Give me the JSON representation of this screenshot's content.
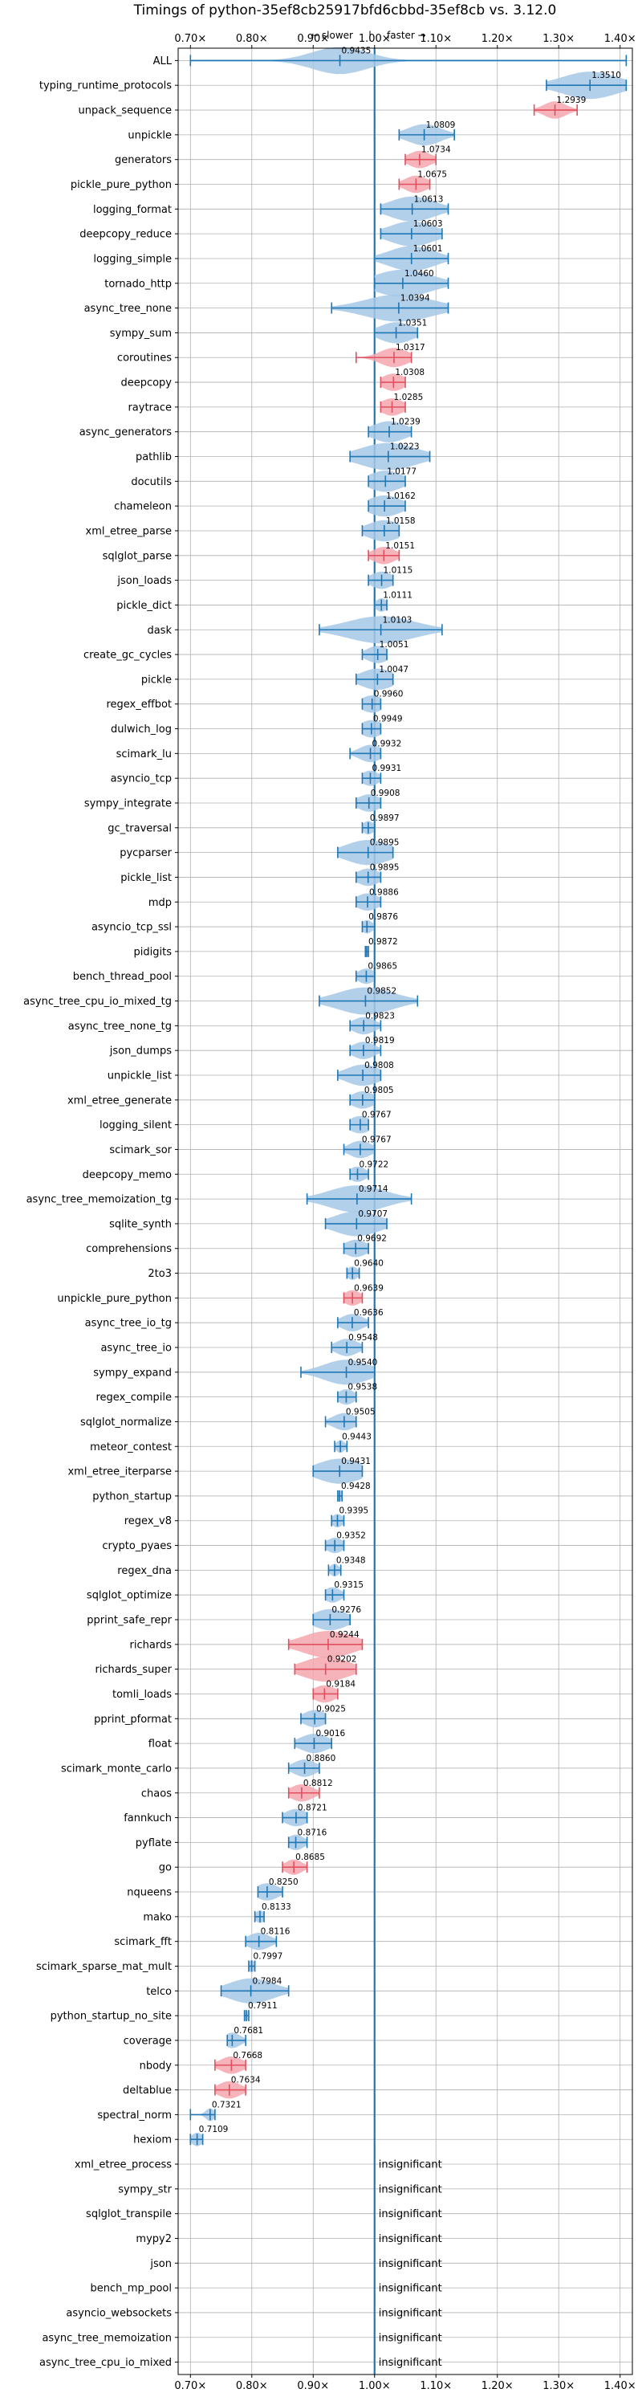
{
  "chart_data": {
    "type": "violin",
    "title": "Timings of python-35ef8cb25917bfd6cbbd-35ef8cb vs. 3.12.0",
    "hint_slower": "← slower",
    "hint_faster": "faster →",
    "hint_separator": "|",
    "xlim": [
      0.68,
      1.42
    ],
    "xticks": [
      0.7,
      0.8,
      0.9,
      1.0,
      1.1,
      1.2,
      1.3,
      1.4
    ],
    "xtick_labels": [
      "0.70×",
      "0.80×",
      "0.90×",
      "1.00×",
      "1.10×",
      "1.20×",
      "1.30×",
      "1.40×"
    ],
    "reference_line": 1.0,
    "grid": true,
    "colors": {
      "normal": "#1f77b4",
      "fill": "#a6c8e8",
      "highlight_fill": "#f4a6ae",
      "highlight_line": "#e05060"
    },
    "insignificant_text": "insignificant",
    "series": [
      {
        "name": "ALL",
        "value": 0.9435,
        "label": "0.9435",
        "min": 0.7,
        "max": 1.41,
        "spread": 0.05,
        "highlight": false
      },
      {
        "name": "typing_runtime_protocols",
        "value": 1.351,
        "label": "1.3510",
        "min": 1.28,
        "max": 1.41,
        "spread": 0.05,
        "highlight": false
      },
      {
        "name": "unpack_sequence",
        "value": 1.2939,
        "label": "1.2939",
        "min": 1.26,
        "max": 1.33,
        "spread": 0.02,
        "highlight": true
      },
      {
        "name": "unpickle",
        "value": 1.0809,
        "label": "1.0809",
        "min": 1.04,
        "max": 1.13,
        "spread": 0.03,
        "highlight": false
      },
      {
        "name": "generators",
        "value": 1.0734,
        "label": "1.0734",
        "min": 1.05,
        "max": 1.1,
        "spread": 0.02,
        "highlight": true
      },
      {
        "name": "pickle_pure_python",
        "value": 1.0675,
        "label": "1.0675",
        "min": 1.04,
        "max": 1.09,
        "spread": 0.02,
        "highlight": true
      },
      {
        "name": "logging_format",
        "value": 1.0613,
        "label": "1.0613",
        "min": 1.01,
        "max": 1.12,
        "spread": 0.04,
        "highlight": false
      },
      {
        "name": "deepcopy_reduce",
        "value": 1.0603,
        "label": "1.0603",
        "min": 1.01,
        "max": 1.11,
        "spread": 0.04,
        "highlight": false
      },
      {
        "name": "logging_simple",
        "value": 1.0601,
        "label": "1.0601",
        "min": 1.0,
        "max": 1.12,
        "spread": 0.04,
        "highlight": false
      },
      {
        "name": "tornado_http",
        "value": 1.046,
        "label": "1.0460",
        "min": 1.0,
        "max": 1.12,
        "spread": 0.05,
        "highlight": false
      },
      {
        "name": "async_tree_none",
        "value": 1.0394,
        "label": "1.0394",
        "min": 0.93,
        "max": 1.12,
        "spread": 0.06,
        "highlight": false
      },
      {
        "name": "sympy_sum",
        "value": 1.0351,
        "label": "1.0351",
        "min": 1.0,
        "max": 1.07,
        "spread": 0.03,
        "highlight": false
      },
      {
        "name": "coroutines",
        "value": 1.0317,
        "label": "1.0317",
        "min": 0.97,
        "max": 1.06,
        "spread": 0.025,
        "highlight": true
      },
      {
        "name": "deepcopy",
        "value": 1.0308,
        "label": "1.0308",
        "min": 1.01,
        "max": 1.05,
        "spread": 0.02,
        "highlight": true
      },
      {
        "name": "raytrace",
        "value": 1.0285,
        "label": "1.0285",
        "min": 1.01,
        "max": 1.05,
        "spread": 0.02,
        "highlight": true
      },
      {
        "name": "async_generators",
        "value": 1.0239,
        "label": "1.0239",
        "min": 0.99,
        "max": 1.06,
        "spread": 0.03,
        "highlight": false
      },
      {
        "name": "pathlib",
        "value": 1.0223,
        "label": "1.0223",
        "min": 0.96,
        "max": 1.09,
        "spread": 0.05,
        "highlight": false
      },
      {
        "name": "docutils",
        "value": 1.0177,
        "label": "1.0177",
        "min": 0.99,
        "max": 1.05,
        "spread": 0.03,
        "highlight": false
      },
      {
        "name": "chameleon",
        "value": 1.0162,
        "label": "1.0162",
        "min": 0.99,
        "max": 1.05,
        "spread": 0.03,
        "highlight": false
      },
      {
        "name": "xml_etree_parse",
        "value": 1.0158,
        "label": "1.0158",
        "min": 0.98,
        "max": 1.04,
        "spread": 0.03,
        "highlight": false
      },
      {
        "name": "sqlglot_parse",
        "value": 1.0151,
        "label": "1.0151",
        "min": 0.99,
        "max": 1.04,
        "spread": 0.02,
        "highlight": true
      },
      {
        "name": "json_loads",
        "value": 1.0115,
        "label": "1.0115",
        "min": 0.99,
        "max": 1.03,
        "spread": 0.02,
        "highlight": false
      },
      {
        "name": "pickle_dict",
        "value": 1.0111,
        "label": "1.0111",
        "min": 1.0,
        "max": 1.02,
        "spread": 0.01,
        "highlight": false
      },
      {
        "name": "dask",
        "value": 1.0103,
        "label": "1.0103",
        "min": 0.91,
        "max": 1.11,
        "spread": 0.06,
        "highlight": false
      },
      {
        "name": "create_gc_cycles",
        "value": 1.0051,
        "label": "1.0051",
        "min": 0.98,
        "max": 1.02,
        "spread": 0.02,
        "highlight": false
      },
      {
        "name": "pickle",
        "value": 1.0047,
        "label": "1.0047",
        "min": 0.97,
        "max": 1.03,
        "spread": 0.03,
        "highlight": false
      },
      {
        "name": "regex_effbot",
        "value": 0.996,
        "label": "0.9960",
        "min": 0.98,
        "max": 1.01,
        "spread": 0.02,
        "highlight": false
      },
      {
        "name": "dulwich_log",
        "value": 0.9949,
        "label": "0.9949",
        "min": 0.98,
        "max": 1.01,
        "spread": 0.02,
        "highlight": false
      },
      {
        "name": "scimark_lu",
        "value": 0.9932,
        "label": "0.9932",
        "min": 0.96,
        "max": 1.01,
        "spread": 0.02,
        "highlight": false
      },
      {
        "name": "asyncio_tcp",
        "value": 0.9931,
        "label": "0.9931",
        "min": 0.98,
        "max": 1.01,
        "spread": 0.015,
        "highlight": false
      },
      {
        "name": "sympy_integrate",
        "value": 0.9908,
        "label": "0.9908",
        "min": 0.97,
        "max": 1.01,
        "spread": 0.02,
        "highlight": false
      },
      {
        "name": "gc_traversal",
        "value": 0.9897,
        "label": "0.9897",
        "min": 0.98,
        "max": 1.0,
        "spread": 0.01,
        "highlight": false
      },
      {
        "name": "pycparser",
        "value": 0.9895,
        "label": "0.9895",
        "min": 0.94,
        "max": 1.03,
        "spread": 0.04,
        "highlight": false
      },
      {
        "name": "pickle_list",
        "value": 0.9895,
        "label": "0.9895",
        "min": 0.97,
        "max": 1.01,
        "spread": 0.02,
        "highlight": false
      },
      {
        "name": "mdp",
        "value": 0.9886,
        "label": "0.9886",
        "min": 0.97,
        "max": 1.01,
        "spread": 0.02,
        "highlight": false
      },
      {
        "name": "asyncio_tcp_ssl",
        "value": 0.9876,
        "label": "0.9876",
        "min": 0.98,
        "max": 1.0,
        "spread": 0.01,
        "highlight": false
      },
      {
        "name": "pidigits",
        "value": 0.9872,
        "label": "0.9872",
        "min": 0.985,
        "max": 0.99,
        "spread": 0.004,
        "highlight": false
      },
      {
        "name": "bench_thread_pool",
        "value": 0.9865,
        "label": "0.9865",
        "min": 0.97,
        "max": 1.0,
        "spread": 0.015,
        "highlight": false
      },
      {
        "name": "async_tree_cpu_io_mixed_tg",
        "value": 0.9852,
        "label": "0.9852",
        "min": 0.91,
        "max": 1.07,
        "spread": 0.05,
        "highlight": false
      },
      {
        "name": "async_tree_none_tg",
        "value": 0.9823,
        "label": "0.9823",
        "min": 0.96,
        "max": 1.01,
        "spread": 0.02,
        "highlight": false
      },
      {
        "name": "json_dumps",
        "value": 0.9819,
        "label": "0.9819",
        "min": 0.96,
        "max": 1.01,
        "spread": 0.02,
        "highlight": false
      },
      {
        "name": "unpickle_list",
        "value": 0.9808,
        "label": "0.9808",
        "min": 0.94,
        "max": 1.01,
        "spread": 0.03,
        "highlight": false
      },
      {
        "name": "xml_etree_generate",
        "value": 0.9805,
        "label": "0.9805",
        "min": 0.96,
        "max": 1.0,
        "spread": 0.02,
        "highlight": false
      },
      {
        "name": "logging_silent",
        "value": 0.9767,
        "label": "0.9767",
        "min": 0.96,
        "max": 0.99,
        "spread": 0.02,
        "highlight": false
      },
      {
        "name": "scimark_sor",
        "value": 0.9767,
        "label": "0.9767",
        "min": 0.95,
        "max": 1.0,
        "spread": 0.02,
        "highlight": false
      },
      {
        "name": "deepcopy_memo",
        "value": 0.9722,
        "label": "0.9722",
        "min": 0.96,
        "max": 0.99,
        "spread": 0.015,
        "highlight": false
      },
      {
        "name": "async_tree_memoization_tg",
        "value": 0.9714,
        "label": "0.9714",
        "min": 0.89,
        "max": 1.06,
        "spread": 0.05,
        "highlight": false
      },
      {
        "name": "sqlite_synth",
        "value": 0.9707,
        "label": "0.9707",
        "min": 0.92,
        "max": 1.02,
        "spread": 0.04,
        "highlight": false
      },
      {
        "name": "comprehensions",
        "value": 0.9692,
        "label": "0.9692",
        "min": 0.95,
        "max": 0.99,
        "spread": 0.02,
        "highlight": false
      },
      {
        "name": "2to3",
        "value": 0.964,
        "label": "0.9640",
        "min": 0.955,
        "max": 0.975,
        "spread": 0.01,
        "highlight": false
      },
      {
        "name": "unpickle_pure_python",
        "value": 0.9639,
        "label": "0.9639",
        "min": 0.95,
        "max": 0.98,
        "spread": 0.015,
        "highlight": true
      },
      {
        "name": "async_tree_io_tg",
        "value": 0.9636,
        "label": "0.9636",
        "min": 0.94,
        "max": 0.99,
        "spread": 0.02,
        "highlight": false
      },
      {
        "name": "async_tree_io",
        "value": 0.9548,
        "label": "0.9548",
        "min": 0.93,
        "max": 0.98,
        "spread": 0.02,
        "highlight": false
      },
      {
        "name": "sympy_expand",
        "value": 0.954,
        "label": "0.9540",
        "min": 0.88,
        "max": 1.0,
        "spread": 0.04,
        "highlight": false
      },
      {
        "name": "regex_compile",
        "value": 0.9538,
        "label": "0.9538",
        "min": 0.94,
        "max": 0.97,
        "spread": 0.015,
        "highlight": false
      },
      {
        "name": "sqlglot_normalize",
        "value": 0.9505,
        "label": "0.9505",
        "min": 0.92,
        "max": 0.97,
        "spread": 0.02,
        "highlight": false
      },
      {
        "name": "meteor_contest",
        "value": 0.9443,
        "label": "0.9443",
        "min": 0.935,
        "max": 0.955,
        "spread": 0.008,
        "highlight": false
      },
      {
        "name": "xml_etree_iterparse",
        "value": 0.9431,
        "label": "0.9431",
        "min": 0.9,
        "max": 0.98,
        "spread": 0.04,
        "highlight": false
      },
      {
        "name": "python_startup",
        "value": 0.9428,
        "label": "0.9428",
        "min": 0.94,
        "max": 0.947,
        "spread": 0.005,
        "highlight": false
      },
      {
        "name": "regex_v8",
        "value": 0.9395,
        "label": "0.9395",
        "min": 0.93,
        "max": 0.95,
        "spread": 0.01,
        "highlight": false
      },
      {
        "name": "crypto_pyaes",
        "value": 0.9352,
        "label": "0.9352",
        "min": 0.92,
        "max": 0.95,
        "spread": 0.015,
        "highlight": false
      },
      {
        "name": "regex_dna",
        "value": 0.9348,
        "label": "0.9348",
        "min": 0.925,
        "max": 0.945,
        "spread": 0.008,
        "highlight": false
      },
      {
        "name": "sqlglot_optimize",
        "value": 0.9315,
        "label": "0.9315",
        "min": 0.92,
        "max": 0.95,
        "spread": 0.015,
        "highlight": false
      },
      {
        "name": "pprint_safe_repr",
        "value": 0.9276,
        "label": "0.9276",
        "min": 0.9,
        "max": 0.96,
        "spread": 0.03,
        "highlight": false
      },
      {
        "name": "richards",
        "value": 0.9244,
        "label": "0.9244",
        "min": 0.86,
        "max": 0.98,
        "spread": 0.045,
        "highlight": true
      },
      {
        "name": "richards_super",
        "value": 0.9202,
        "label": "0.9202",
        "min": 0.87,
        "max": 0.97,
        "spread": 0.04,
        "highlight": true
      },
      {
        "name": "tomli_loads",
        "value": 0.9184,
        "label": "0.9184",
        "min": 0.9,
        "max": 0.94,
        "spread": 0.02,
        "highlight": true
      },
      {
        "name": "pprint_pformat",
        "value": 0.9025,
        "label": "0.9025",
        "min": 0.88,
        "max": 0.92,
        "spread": 0.02,
        "highlight": false
      },
      {
        "name": "float",
        "value": 0.9016,
        "label": "0.9016",
        "min": 0.87,
        "max": 0.93,
        "spread": 0.025,
        "highlight": false
      },
      {
        "name": "scimark_monte_carlo",
        "value": 0.886,
        "label": "0.8860",
        "min": 0.86,
        "max": 0.91,
        "spread": 0.02,
        "highlight": false
      },
      {
        "name": "chaos",
        "value": 0.8812,
        "label": "0.8812",
        "min": 0.86,
        "max": 0.91,
        "spread": 0.02,
        "highlight": true
      },
      {
        "name": "fannkuch",
        "value": 0.8721,
        "label": "0.8721",
        "min": 0.85,
        "max": 0.89,
        "spread": 0.02,
        "highlight": false
      },
      {
        "name": "pyflate",
        "value": 0.8716,
        "label": "0.8716",
        "min": 0.86,
        "max": 0.89,
        "spread": 0.015,
        "highlight": false
      },
      {
        "name": "go",
        "value": 0.8685,
        "label": "0.8685",
        "min": 0.85,
        "max": 0.89,
        "spread": 0.015,
        "highlight": true
      },
      {
        "name": "nqueens",
        "value": 0.825,
        "label": "0.8250",
        "min": 0.81,
        "max": 0.85,
        "spread": 0.02,
        "highlight": false
      },
      {
        "name": "mako",
        "value": 0.8133,
        "label": "0.8133",
        "min": 0.805,
        "max": 0.82,
        "spread": 0.008,
        "highlight": false
      },
      {
        "name": "scimark_fft",
        "value": 0.8116,
        "label": "0.8116",
        "min": 0.79,
        "max": 0.84,
        "spread": 0.02,
        "highlight": false
      },
      {
        "name": "scimark_sparse_mat_mult",
        "value": 0.7997,
        "label": "0.7997",
        "min": 0.795,
        "max": 0.805,
        "spread": 0.006,
        "highlight": false
      },
      {
        "name": "telco",
        "value": 0.7984,
        "label": "0.7984",
        "min": 0.75,
        "max": 0.86,
        "spread": 0.04,
        "highlight": false
      },
      {
        "name": "python_startup_no_site",
        "value": 0.7911,
        "label": "0.7911",
        "min": 0.788,
        "max": 0.795,
        "spread": 0.004,
        "highlight": false
      },
      {
        "name": "coverage",
        "value": 0.7681,
        "label": "0.7681",
        "min": 0.76,
        "max": 0.79,
        "spread": 0.015,
        "highlight": false
      },
      {
        "name": "nbody",
        "value": 0.7668,
        "label": "0.7668",
        "min": 0.74,
        "max": 0.79,
        "spread": 0.02,
        "highlight": true
      },
      {
        "name": "deltablue",
        "value": 0.7634,
        "label": "0.7634",
        "min": 0.74,
        "max": 0.79,
        "spread": 0.02,
        "highlight": true
      },
      {
        "name": "spectral_norm",
        "value": 0.7321,
        "label": "0.7321",
        "min": 0.7,
        "max": 0.74,
        "spread": 0.008,
        "highlight": false
      },
      {
        "name": "hexiom",
        "value": 0.7109,
        "label": "0.7109",
        "min": 0.7,
        "max": 0.72,
        "spread": 0.01,
        "highlight": false
      },
      {
        "name": "xml_etree_process",
        "insignificant": true
      },
      {
        "name": "sympy_str",
        "insignificant": true
      },
      {
        "name": "sqlglot_transpile",
        "insignificant": true
      },
      {
        "name": "mypy2",
        "insignificant": true
      },
      {
        "name": "json",
        "insignificant": true
      },
      {
        "name": "bench_mp_pool",
        "insignificant": true
      },
      {
        "name": "asyncio_websockets",
        "insignificant": true
      },
      {
        "name": "async_tree_memoization",
        "insignificant": true
      },
      {
        "name": "async_tree_cpu_io_mixed",
        "insignificant": true
      }
    ]
  }
}
